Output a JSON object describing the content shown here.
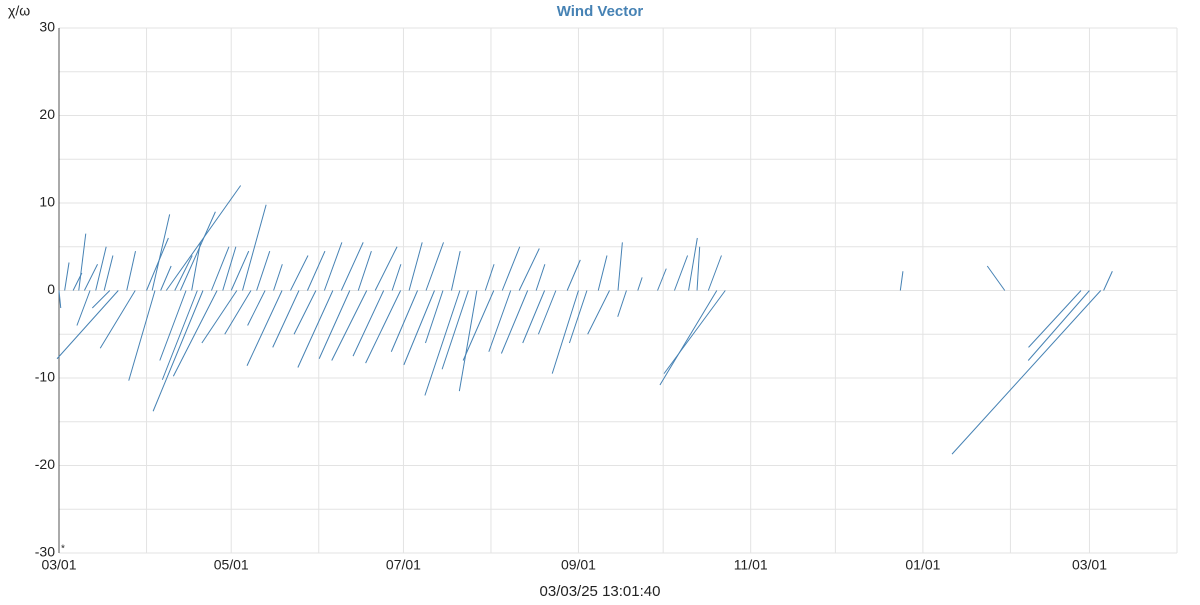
{
  "chart_data": {
    "type": "vector",
    "title": "Wind Vector",
    "y_label": "χ/ω",
    "x_label": "03/03/25 13:01:40",
    "note": "*",
    "color": "#4682b4",
    "grid": true,
    "xlim": [
      "03/01",
      "04/01"
    ],
    "xticks": [
      "03/01",
      "05/01",
      "07/01",
      "09/01",
      "11/01",
      "01/01",
      "03/01"
    ],
    "xminor": [
      "04/01",
      "06/01",
      "08/01",
      "10/01",
      "12/01",
      "02/01"
    ],
    "ylim": [
      -30,
      30
    ],
    "yticks": [
      -30,
      -20,
      -10,
      0,
      10,
      20,
      30
    ],
    "yminor": [
      -25,
      -15,
      -5,
      5,
      15,
      25
    ],
    "x": [
      "03/01",
      "03/03",
      "03/06",
      "03/08",
      "03/10",
      "03/12",
      "03/14",
      "03/17",
      "03/19",
      "03/22",
      "03/25",
      "03/28",
      "04/01",
      "04/03",
      "04/04",
      "04/06",
      "04/08",
      "04/11",
      "04/13",
      "04/15",
      "04/17",
      "04/19",
      "04/21",
      "04/24",
      "04/26",
      "04/28",
      "05/01",
      "05/03",
      "05/05",
      "05/08",
      "05/10",
      "05/13",
      "05/16",
      "05/19",
      "05/22",
      "05/25",
      "05/28",
      "05/31",
      "06/03",
      "06/06",
      "06/09",
      "06/12",
      "06/15",
      "06/18",
      "06/21",
      "06/24",
      "06/27",
      "06/30",
      "07/03",
      "07/06",
      "07/09",
      "07/12",
      "07/15",
      "07/18",
      "07/21",
      "07/24",
      "07/27",
      "07/30",
      "08/02",
      "08/05",
      "08/08",
      "08/11",
      "08/14",
      "08/17",
      "08/20",
      "08/24",
      "08/28",
      "09/01",
      "09/04",
      "09/08",
      "09/12",
      "09/15",
      "09/18",
      "09/22",
      "09/29",
      "10/05",
      "10/10",
      "10/13",
      "10/17",
      "10/20",
      "10/23",
      "12/24",
      "01/30",
      "02/26",
      "03/01",
      "03/05",
      "03/06"
    ],
    "u": [
      0.2,
      0.5,
      1,
      0.8,
      1.5,
      -1.5,
      1.2,
      1,
      -2,
      -7,
      1,
      -4,
      2.5,
      2,
      -3,
      1.2,
      8.5,
      2,
      4,
      -3,
      1,
      -4,
      -5.7,
      2,
      -5,
      1.5,
      2,
      -4,
      2.7,
      -3,
      1.5,
      -2,
      1,
      -4,
      2,
      -3,
      2,
      -2.5,
      2,
      -4,
      2.5,
      -3.5,
      1.5,
      -4,
      2.5,
      -3.5,
      1,
      -4,
      1.5,
      -3,
      2,
      -3.5,
      -2,
      1,
      -4,
      -3,
      -2,
      1,
      -3.5,
      2,
      -2.5,
      2.3,
      -3,
      1,
      -2.5,
      -2,
      1.5,
      -3,
      -2,
      1,
      -2.5,
      0.5,
      -1,
      0.5,
      1,
      1.5,
      1,
      0.3,
      1.5,
      -6.5,
      -7,
      0.3,
      -2,
      -6,
      -7,
      -17,
      1
    ],
    "v": [
      -2,
      3.2,
      2,
      6.5,
      3,
      -4,
      5,
      4,
      -2,
      -7.8,
      4.5,
      -6.6,
      6,
      8.7,
      -10.3,
      2.8,
      12,
      4,
      9,
      -8,
      5.5,
      -10.2,
      -13.8,
      5,
      -9.8,
      5,
      4.5,
      -6,
      9.8,
      -5,
      4.5,
      -4,
      3,
      -8.6,
      4,
      -6.5,
      4.5,
      -5,
      5.5,
      -8.8,
      5.5,
      -7.8,
      4.5,
      -8,
      5,
      -7.5,
      3,
      -8.3,
      5.5,
      -7,
      5.5,
      -8.5,
      -6,
      4.5,
      -12,
      -9,
      -11.5,
      3,
      -8,
      5,
      -7,
      4.8,
      -7.2,
      3,
      -6,
      -5,
      3.5,
      -9.5,
      -6,
      4,
      -5,
      5.5,
      -3,
      1.5,
      2.5,
      4,
      6,
      5,
      4,
      -10.8,
      -9.5,
      2.2,
      2.8,
      -6.5,
      -8,
      -18.7,
      2.2
    ]
  }
}
